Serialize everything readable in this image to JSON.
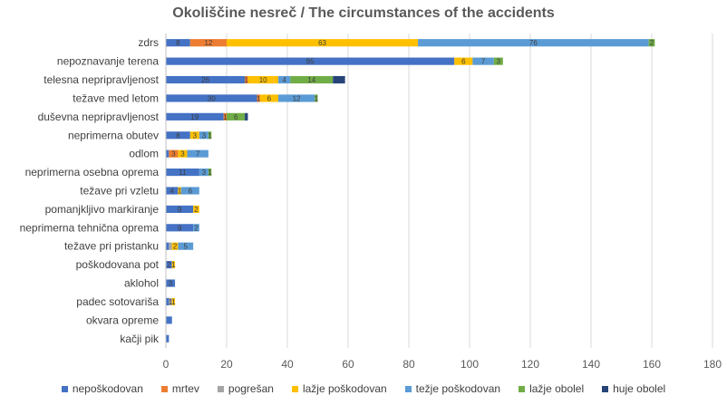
{
  "chart_data": {
    "type": "bar",
    "orientation": "horizontal",
    "stacked": true,
    "title": "Okoliščine nesreč / The circumstances of the accidents",
    "xlabel": "",
    "ylabel": "",
    "xlim": [
      0,
      180
    ],
    "xticks": [
      0,
      20,
      40,
      60,
      80,
      100,
      120,
      140,
      160,
      180
    ],
    "grid": true,
    "legend_position": "bottom",
    "categories": [
      "zdrs",
      "nepoznavanje terena",
      "telesna nepripravljenost",
      "težave med letom",
      "duševna nepripravljenost",
      "neprimerna obutev",
      "odlom",
      "neprimerna osebna oprema",
      "težave pri vzletu",
      "pomanjkljivo markiranje",
      "neprimerna tehnična oprema",
      "težave pri pristanku",
      "poškodovana pot",
      "aklohol",
      "padec sotovariša",
      "okvara opreme",
      "kačji pik"
    ],
    "series": [
      {
        "name": "nepoškodovan",
        "color": "#4472C4",
        "values": [
          8,
          95,
          26,
          30,
          19,
          8,
          1,
          11,
          4,
          9,
          9,
          1,
          2,
          3,
          1,
          2,
          1
        ]
      },
      {
        "name": "mrtev",
        "color": "#ED7D31",
        "values": [
          12,
          0,
          1,
          1,
          1,
          0,
          3,
          0,
          0,
          0,
          0,
          0,
          0,
          0,
          0,
          0,
          0
        ]
      },
      {
        "name": "pogrešan",
        "color": "#A5A5A5",
        "values": [
          0,
          0,
          0,
          0,
          0,
          0,
          0,
          0,
          0,
          0,
          0,
          1,
          0,
          0,
          1,
          0,
          0
        ]
      },
      {
        "name": "lažje poškodovan",
        "color": "#FFC000",
        "values": [
          63,
          6,
          10,
          6,
          0,
          3,
          3,
          0,
          1,
          2,
          0,
          2,
          1,
          0,
          1,
          0,
          0
        ]
      },
      {
        "name": "težje poškodovan",
        "color": "#5B9BD5",
        "values": [
          76,
          7,
          4,
          12,
          0,
          3,
          7,
          3,
          6,
          0,
          2,
          5,
          0,
          0,
          0,
          0,
          0
        ]
      },
      {
        "name": "lažje obolel",
        "color": "#70AD47",
        "values": [
          2,
          3,
          14,
          1,
          6,
          1,
          0,
          1,
          0,
          0,
          0,
          0,
          0,
          0,
          0,
          0,
          0
        ]
      },
      {
        "name": "huje obolel",
        "color": "#264478",
        "values": [
          0,
          0,
          4,
          0,
          1,
          0,
          0,
          0,
          0,
          0,
          0,
          0,
          0,
          0,
          0,
          0,
          0
        ]
      }
    ],
    "labels": [
      [
        "8",
        "12",
        "",
        "63",
        "76",
        "2",
        ""
      ],
      [
        "95",
        "",
        "",
        "6",
        "7",
        "3",
        ""
      ],
      [
        "26",
        "1",
        "",
        "10",
        "4",
        "14",
        ""
      ],
      [
        "30",
        "1",
        "",
        "6",
        "12",
        "1",
        ""
      ],
      [
        "19",
        "1",
        "",
        "",
        "",
        "6",
        ""
      ],
      [
        "8",
        "",
        "",
        "3",
        "3",
        "1",
        ""
      ],
      [
        "",
        "3",
        "",
        "3",
        "7",
        "",
        ""
      ],
      [
        "11",
        "",
        "",
        "",
        "3",
        "1",
        ""
      ],
      [
        "4",
        "",
        "",
        "1",
        "6",
        "",
        ""
      ],
      [
        "9",
        "",
        "",
        "2",
        "",
        "",
        ""
      ],
      [
        "9",
        "",
        "",
        "",
        "2",
        "",
        ""
      ],
      [
        "",
        "",
        "",
        "2",
        "5",
        "",
        ""
      ],
      [
        "2",
        "",
        "",
        "1",
        "",
        "",
        ""
      ],
      [
        "3",
        "",
        "",
        "",
        "",
        "",
        ""
      ],
      [
        "",
        "",
        "1",
        "1",
        "",
        "",
        ""
      ],
      [
        "",
        "",
        "",
        "",
        "",
        "",
        ""
      ],
      [
        "",
        "",
        "",
        "",
        "",
        "",
        ""
      ]
    ]
  }
}
